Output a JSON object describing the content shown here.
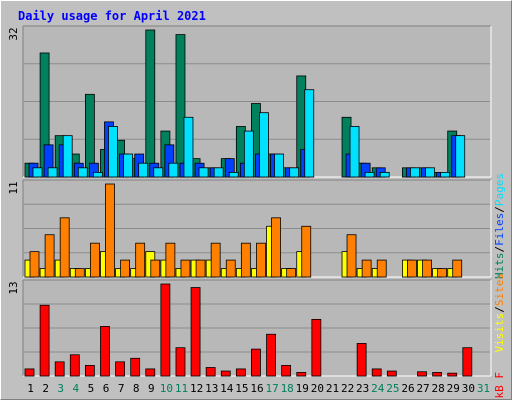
{
  "title": "Daily usage for April 2021",
  "colors": {
    "background": "#c0c0c0",
    "panel": "#b8b8b8",
    "title": "#0000ff",
    "hits": "#00805c",
    "files": "#0040ff",
    "pages": "#00e0ff",
    "sites": "#ff8000",
    "visits": "#ffff00",
    "kbytes": "#ff0000",
    "weekday": "#000000",
    "weekend": "#00805c"
  },
  "chart_data": [
    {
      "type": "bar",
      "panel": "hits",
      "label": "32",
      "legend": [
        "Pages",
        "Files",
        "Hits"
      ],
      "ylim": [
        0,
        32
      ],
      "categories": [
        "1",
        "2",
        "3",
        "4",
        "5",
        "6",
        "7",
        "8",
        "9",
        "10",
        "11",
        "12",
        "13",
        "14",
        "15",
        "16",
        "17",
        "18",
        "19",
        "20",
        "21",
        "22",
        "23",
        "24",
        "25",
        "26",
        "27",
        "28",
        "29",
        "30",
        "31"
      ],
      "series": [
        {
          "name": "Hits",
          "values": [
            3,
            27,
            9,
            5,
            18,
            6,
            8,
            4,
            32,
            10,
            31,
            4,
            2,
            4,
            11,
            16,
            5,
            2,
            22,
            0,
            0,
            13,
            3,
            2,
            0,
            2,
            2,
            1,
            10,
            0,
            0
          ]
        },
        {
          "name": "Files",
          "values": [
            3,
            7,
            7,
            3,
            3,
            12,
            5,
            5,
            3,
            7,
            3,
            3,
            2,
            4,
            3,
            5,
            5,
            2,
            6,
            0,
            0,
            5,
            3,
            2,
            0,
            2,
            2,
            1,
            9,
            0,
            0
          ]
        },
        {
          "name": "Pages",
          "values": [
            2,
            2,
            9,
            2,
            1,
            11,
            5,
            3,
            2,
            3,
            13,
            2,
            2,
            1,
            10,
            14,
            5,
            2,
            19,
            0,
            0,
            11,
            1,
            1,
            0,
            2,
            2,
            1,
            9,
            0,
            0
          ]
        }
      ]
    },
    {
      "type": "bar",
      "panel": "visits",
      "label": "11",
      "legend": [
        "Sites",
        "Visits"
      ],
      "ylim": [
        0,
        11
      ],
      "categories": [
        "1",
        "2",
        "3",
        "4",
        "5",
        "6",
        "7",
        "8",
        "9",
        "10",
        "11",
        "12",
        "13",
        "14",
        "15",
        "16",
        "17",
        "18",
        "19",
        "20",
        "21",
        "22",
        "23",
        "24",
        "25",
        "26",
        "27",
        "28",
        "29",
        "30",
        "31"
      ],
      "series": [
        {
          "name": "Visits",
          "values": [
            2,
            1,
            2,
            1,
            1,
            3,
            1,
            1,
            3,
            2,
            1,
            2,
            2,
            1,
            1,
            1,
            6,
            1,
            3,
            0,
            0,
            3,
            1,
            1,
            0,
            2,
            2,
            1,
            1,
            0,
            0
          ]
        },
        {
          "name": "Sites",
          "values": [
            3,
            5,
            7,
            1,
            4,
            11,
            2,
            4,
            2,
            4,
            2,
            2,
            4,
            2,
            4,
            4,
            7,
            1,
            6,
            0,
            0,
            5,
            2,
            2,
            0,
            2,
            2,
            1,
            2,
            0,
            0
          ]
        }
      ]
    },
    {
      "type": "bar",
      "panel": "kbytes",
      "label": "13",
      "legend": [
        "kB F"
      ],
      "ylim": [
        0,
        13
      ],
      "categories": [
        "1",
        "2",
        "3",
        "4",
        "5",
        "6",
        "7",
        "8",
        "9",
        "10",
        "11",
        "12",
        "13",
        "14",
        "15",
        "16",
        "17",
        "18",
        "19",
        "20",
        "21",
        "22",
        "23",
        "24",
        "25",
        "26",
        "27",
        "28",
        "29",
        "30",
        "31"
      ],
      "series": [
        {
          "name": "kB F",
          "values": [
            1,
            10,
            2,
            3,
            1.5,
            7,
            2,
            2.5,
            1,
            13,
            4,
            12.5,
            1.2,
            0.7,
            1,
            3.8,
            5.9,
            1.5,
            0.5,
            8,
            0,
            0,
            4.6,
            1,
            0.7,
            0,
            0.6,
            0.5,
            0.4,
            4.0,
            0
          ]
        }
      ]
    }
  ],
  "x_axis": {
    "days": [
      "1",
      "2",
      "3",
      "4",
      "5",
      "6",
      "7",
      "8",
      "9",
      "10",
      "11",
      "12",
      "13",
      "14",
      "15",
      "16",
      "17",
      "18",
      "19",
      "20",
      "21",
      "22",
      "23",
      "24",
      "25",
      "26",
      "27",
      "28",
      "29",
      "30",
      "31"
    ],
    "weekend_days": [
      "3",
      "4",
      "10",
      "11",
      "17",
      "18",
      "24",
      "25",
      "31"
    ]
  }
}
